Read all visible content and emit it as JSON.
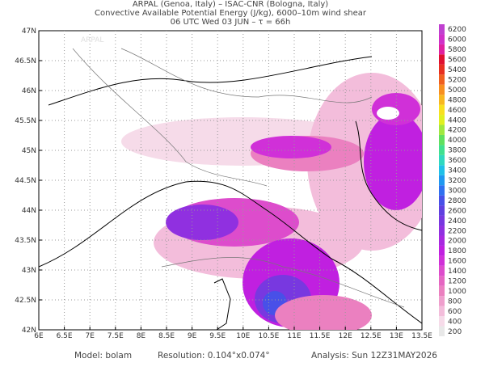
{
  "header": {
    "lines": [
      "ARPAL (Genoa, Italy)  –  ISAC-CNR (Bologna, Italy)",
      "Convective Available Potential Energy (J/kg), 6000–10m wind shear",
      "06 UTC Wed 03 JUN  –  τ = 66h"
    ]
  },
  "map": {
    "lon_labels": [
      "6E",
      "6.5E",
      "7E",
      "7.5E",
      "8E",
      "8.5E",
      "9E",
      "9.5E",
      "10E",
      "10.5E",
      "11E",
      "11.5E",
      "12E",
      "12.5E",
      "13E",
      "13.5E"
    ],
    "lat_labels": [
      "42N",
      "42.5N",
      "43N",
      "43.5N",
      "44N",
      "44.5N",
      "45N",
      "45.5N",
      "46N",
      "46.5N",
      "47N"
    ],
    "watermark": "ARPAL"
  },
  "colorbar": {
    "labels": [
      "200",
      "400",
      "600",
      "800",
      "1000",
      "1200",
      "1400",
      "1600",
      "1800",
      "2000",
      "2200",
      "2400",
      "2600",
      "2800",
      "3000",
      "3200",
      "3400",
      "3600",
      "3800",
      "4000",
      "4200",
      "4400",
      "4600",
      "4800",
      "5000",
      "5200",
      "5400",
      "5600",
      "5800",
      "6000",
      "6200"
    ],
    "colors": [
      "#e8e8e8",
      "#f6dbe9",
      "#f3bddb",
      "#ef9fcd",
      "#eb80c0",
      "#e566c2",
      "#dd4ccc",
      "#d030d8",
      "#c020e0",
      "#a828e0",
      "#9030e0",
      "#7838e0",
      "#6040e0",
      "#4850e8",
      "#3070f0",
      "#2098f0",
      "#20c0e8",
      "#30d8c0",
      "#40e090",
      "#60e060",
      "#a0e840",
      "#e0f020",
      "#f8e020",
      "#f8b820",
      "#f89020",
      "#f06020",
      "#e83020",
      "#e01030",
      "#e020a0",
      "#d030c8",
      "#c040d0"
    ]
  },
  "footer": {
    "model": "Model: bolam",
    "resolution": "Resolution: 0.104°x0.074°",
    "analysis": "Analysis: Sun 12Z31MAY2026"
  }
}
